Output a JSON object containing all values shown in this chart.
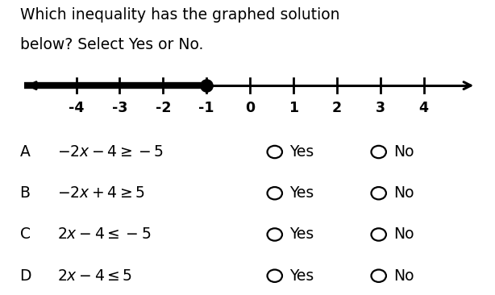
{
  "title_line1": "Which inequality has the graphed solution",
  "title_line2": "below? Select Yes or No.",
  "tick_positions": [
    -4,
    -3,
    -2,
    -1,
    0,
    1,
    2,
    3,
    4
  ],
  "tick_labels": [
    "-4",
    "-3",
    "-2",
    "-1",
    "0",
    "1",
    "2",
    "3",
    "4"
  ],
  "filled_dot": -1,
  "shaded_direction": "left",
  "rows": [
    {
      "label": "A",
      "expr_latex": "$-2x-4\\geq-5$"
    },
    {
      "label": "B",
      "expr_latex": "$-2x+4\\geq5$"
    },
    {
      "label": "C",
      "expr_latex": "$2x-4\\leq-5$"
    },
    {
      "label": "D",
      "expr_latex": "$2x-4\\leq5$"
    }
  ],
  "background_color": "#ffffff",
  "text_color": "#000000",
  "line_color": "#000000",
  "title_fontsize": 13.5,
  "body_fontsize": 13.5,
  "nl_label_fontsize": 12.5
}
